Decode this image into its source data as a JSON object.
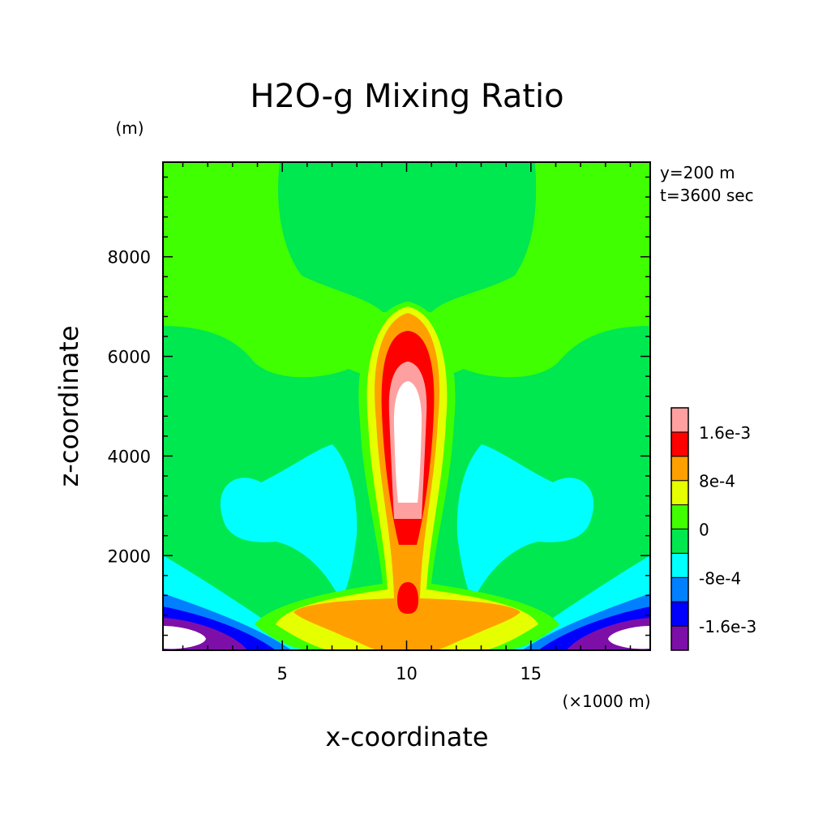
{
  "chart_data": {
    "type": "contour",
    "title": "H2O-g Mixing Ratio",
    "xlabel": "x-coordinate",
    "ylabel": "z-coordinate",
    "x_unit": "(×1000 m)",
    "y_unit": "(m)",
    "xlim": [
      0.2,
      19.8
    ],
    "ylim": [
      100,
      9900
    ],
    "x_ticks": [
      "5",
      "10",
      "15"
    ],
    "y_ticks": [
      "2000",
      "4000",
      "6000",
      "8000"
    ],
    "x_tick_values": [
      5,
      10,
      15
    ],
    "y_tick_values": [
      2000,
      4000,
      6000,
      8000
    ],
    "annotations": [
      "y=200 m",
      "t=3600 sec"
    ],
    "colorbar": {
      "labels": [
        "1.6e-3",
        "8e-4",
        "0",
        "-8e-4",
        "-1.6e-3"
      ],
      "label_values": [
        0.0016,
        0.0008,
        0,
        -0.0008,
        -0.0016
      ],
      "levels": [
        -0.0016,
        -0.0012,
        -0.0008,
        -0.0004,
        0,
        0.0004,
        0.0008,
        0.0012,
        0.0016
      ],
      "colors": [
        "#7d0fa8",
        "#0000ff",
        "#0080ff",
        "#00ffff",
        "#00e850",
        "#40ff00",
        "#e6ff00",
        "#ffa000",
        "#ff0000",
        "#ffa0a0",
        "#ffffff"
      ]
    },
    "grid": false
  }
}
